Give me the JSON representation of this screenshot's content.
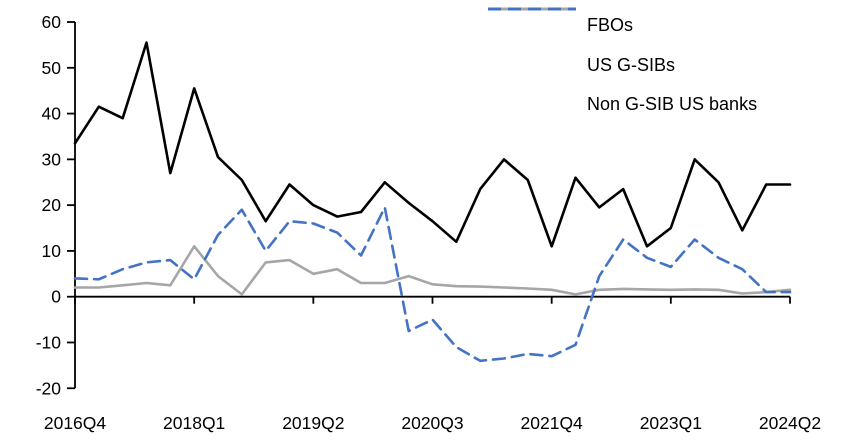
{
  "chart_data": {
    "type": "line",
    "categories": [
      "2016Q4",
      "2017Q1",
      "2017Q2",
      "2017Q3",
      "2017Q4",
      "2018Q1",
      "2018Q2",
      "2018Q3",
      "2018Q4",
      "2019Q1",
      "2019Q2",
      "2019Q3",
      "2019Q4",
      "2020Q1",
      "2020Q2",
      "2020Q3",
      "2020Q4",
      "2021Q1",
      "2021Q2",
      "2021Q3",
      "2021Q4",
      "2022Q1",
      "2022Q2",
      "2022Q3",
      "2022Q4",
      "2023Q1",
      "2023Q2",
      "2023Q3",
      "2023Q4",
      "2024Q1",
      "2024Q2"
    ],
    "x_tick_labels": [
      "2016Q4",
      "2018Q1",
      "2019Q2",
      "2020Q3",
      "2021Q4",
      "2023Q1",
      "2024Q2"
    ],
    "x_tick_indices": [
      0,
      5,
      10,
      15,
      20,
      25,
      30
    ],
    "y_ticks": [
      60,
      50,
      40,
      30,
      20,
      10,
      0,
      -10,
      -20
    ],
    "ylim": [
      -20,
      60
    ],
    "grid": false,
    "legend_position": "top-right",
    "series": [
      {
        "name": "FBOs",
        "color": "#000000",
        "style": "solid",
        "values": [
          33.5,
          41.5,
          39,
          55.5,
          27,
          45.5,
          30.5,
          25.5,
          16.5,
          24.5,
          20,
          17.5,
          18.5,
          25,
          20.5,
          16.5,
          12,
          23.5,
          30,
          25.5,
          11,
          26,
          19.5,
          23.5,
          11,
          15,
          30,
          25,
          14.5,
          24.5,
          24.5
        ]
      },
      {
        "name": "US G-SIBs",
        "color": "#a6a6a6",
        "style": "solid",
        "values": [
          2,
          2,
          2.5,
          3,
          2.5,
          11,
          4.5,
          0.5,
          7.5,
          8,
          5,
          6,
          3,
          3,
          4.5,
          2.7,
          2.3,
          2.2,
          2,
          1.8,
          1.5,
          0.5,
          1.5,
          1.7,
          1.6,
          1.5,
          1.6,
          1.5,
          0.7,
          1,
          1.5
        ]
      },
      {
        "name": "Non G-SIB US banks",
        "color": "#4472c4",
        "style": "dashed",
        "values": [
          4,
          3.8,
          6,
          7.5,
          8,
          3.8,
          13.5,
          19,
          10,
          16.5,
          16,
          14,
          9,
          19.5,
          -7.5,
          -5,
          -11,
          -14,
          -13.5,
          -12.5,
          -13,
          -10.5,
          4.5,
          12.5,
          8.5,
          6.5,
          12.5,
          8.5,
          6,
          1,
          1
        ]
      }
    ]
  }
}
